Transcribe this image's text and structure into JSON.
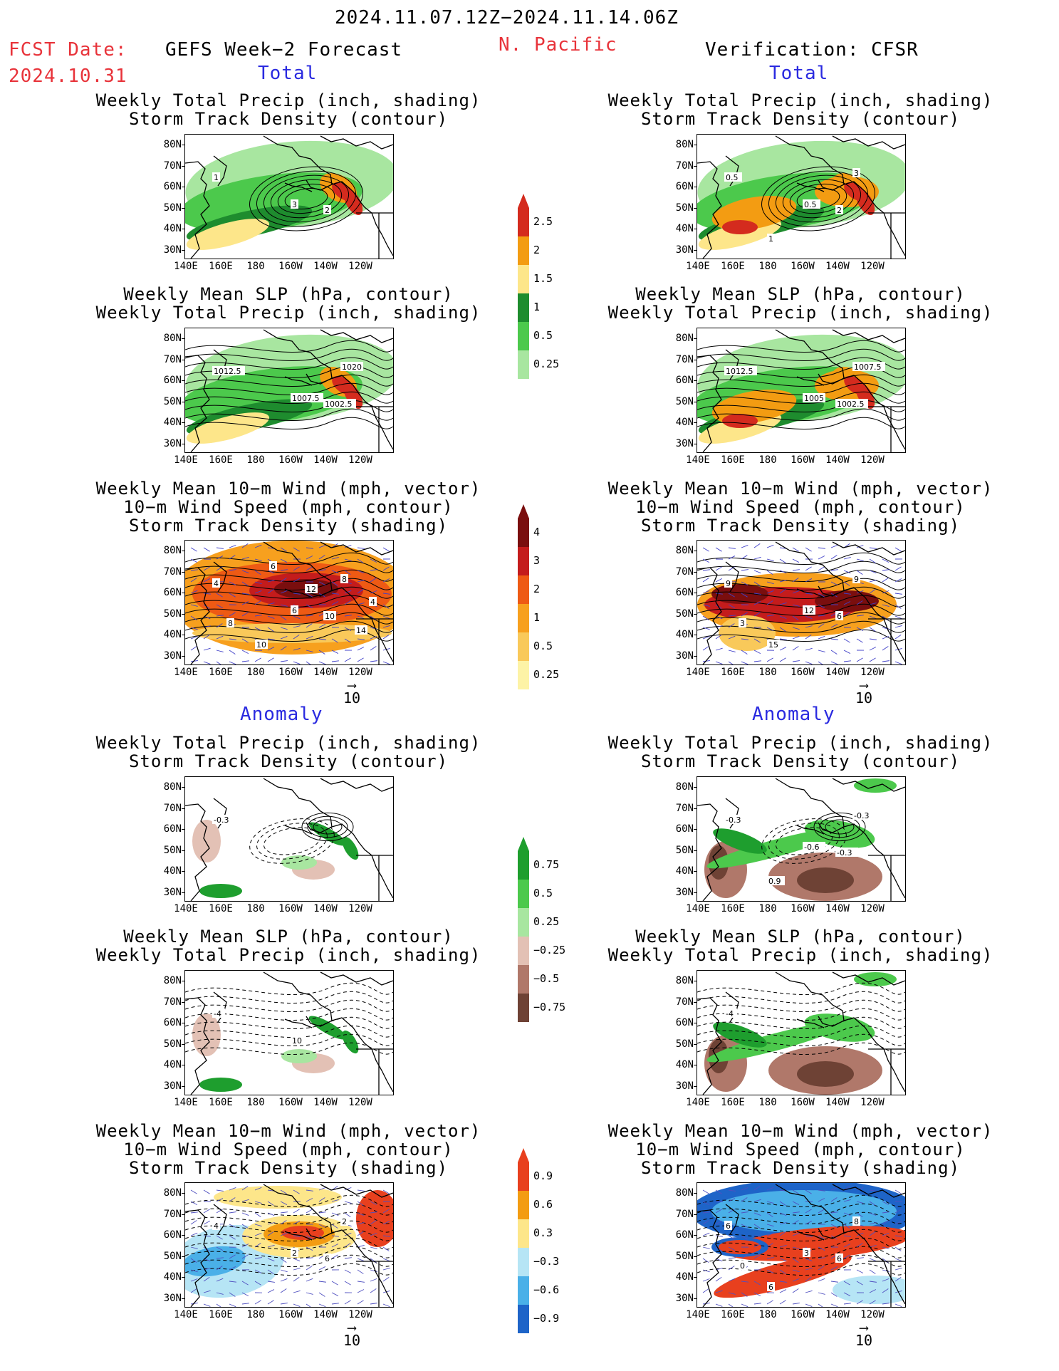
{
  "header": {
    "date_range": "2024.11.07.12Z−2024.11.14.06Z",
    "fcst_label": "FCST Date:",
    "fcst_date": "2024.10.31",
    "left_title": "GEFS Week−2 Forecast",
    "region": "N. Pacific",
    "right_title": "Verification: CFSR"
  },
  "sections": {
    "total_left": "Total",
    "total_right": "Total",
    "anomaly_left": "Anomaly",
    "anomaly_right": "Anomaly"
  },
  "panel_titles": {
    "precip_storm": [
      "Weekly Total Precip (inch, shading)",
      "Storm Track Density (contour)"
    ],
    "slp_precip": [
      "Weekly Mean SLP (hPa, contour)",
      "Weekly Total Precip (inch, shading)"
    ],
    "wind_storm": [
      "Weekly Mean 10−m Wind (mph, vector)",
      "10−m Wind Speed (mph, contour)",
      "Storm Track Density (shading)"
    ]
  },
  "axes": {
    "lat_labels": [
      "80N",
      "70N",
      "60N",
      "50N",
      "40N",
      "30N"
    ],
    "lon_labels": [
      "140E",
      "160E",
      "180",
      "160W",
      "140W",
      "120W"
    ]
  },
  "vector_scale": "10",
  "panels": {
    "fcst_total_precip": {
      "contour_labels": [
        "1",
        "3",
        "2"
      ]
    },
    "fcst_total_slp": {
      "contour_labels": [
        "1012.5",
        "1007.5",
        "1002.5",
        "1020"
      ]
    },
    "fcst_total_wind": {
      "contour_labels": [
        "4",
        "6",
        "10",
        "8",
        "10",
        "8",
        "14",
        "12",
        "6",
        "4"
      ]
    },
    "fcst_anom_precip": {
      "contour_labels": [
        "-0.3"
      ]
    },
    "fcst_anom_slp": {
      "contour_labels": [
        "-4",
        "10"
      ]
    },
    "fcst_anom_wind": {
      "contour_labels": [
        "4",
        "2",
        "6",
        "2"
      ]
    },
    "verif_total_precip": {
      "contour_labels": [
        "0.5",
        "0.5",
        "2",
        "3",
        "1"
      ]
    },
    "verif_total_slp": {
      "contour_labels": [
        "1012.5",
        "1005",
        "1002.5",
        "1007.5"
      ]
    },
    "verif_total_wind": {
      "contour_labels": [
        "9",
        "12",
        "6",
        "9",
        "15",
        "3"
      ]
    },
    "verif_anom_precip": {
      "contour_labels": [
        "-0.3",
        "-0.6",
        "-0.3",
        "-0.3",
        "0.9"
      ]
    },
    "verif_anom_slp": {
      "contour_labels": [
        "-4"
      ]
    },
    "verif_anom_wind": {
      "contour_labels": [
        "6",
        "3",
        "6",
        "8",
        "6",
        "0"
      ]
    }
  },
  "colorbars": {
    "precip_total": {
      "labels": [
        "2.5",
        "2",
        "1.5",
        "1",
        "0.5",
        "0.25"
      ],
      "colors": [
        "#d42b1e",
        "#f39c12",
        "#fde68a",
        "#1e8c2e",
        "#4cc94c",
        "#a8e6a0"
      ]
    },
    "storm_total": {
      "labels": [
        "4",
        "3",
        "2",
        "1",
        "0.5",
        "0.25"
      ],
      "colors": [
        "#7a0e0e",
        "#c41c1c",
        "#ee5a14",
        "#f7a01e",
        "#f9c95a",
        "#fdf3a6"
      ]
    },
    "precip_anom": {
      "labels": [
        "0.75",
        "0.5",
        "0.25",
        "−0.25",
        "−0.5",
        "−0.75"
      ],
      "colors": [
        "#1e9e2e",
        "#4cc94c",
        "#a8e6a0",
        "#e3c1b5",
        "#b0786a",
        "#6e4235"
      ]
    },
    "storm_anom": {
      "labels": [
        "0.9",
        "0.6",
        "0.3",
        "−0.3",
        "−0.6",
        "−0.9"
      ],
      "colors": [
        "#e8401e",
        "#f39c12",
        "#fde68a",
        "#b6e5f5",
        "#4ab0e8",
        "#1e64c8"
      ]
    }
  }
}
